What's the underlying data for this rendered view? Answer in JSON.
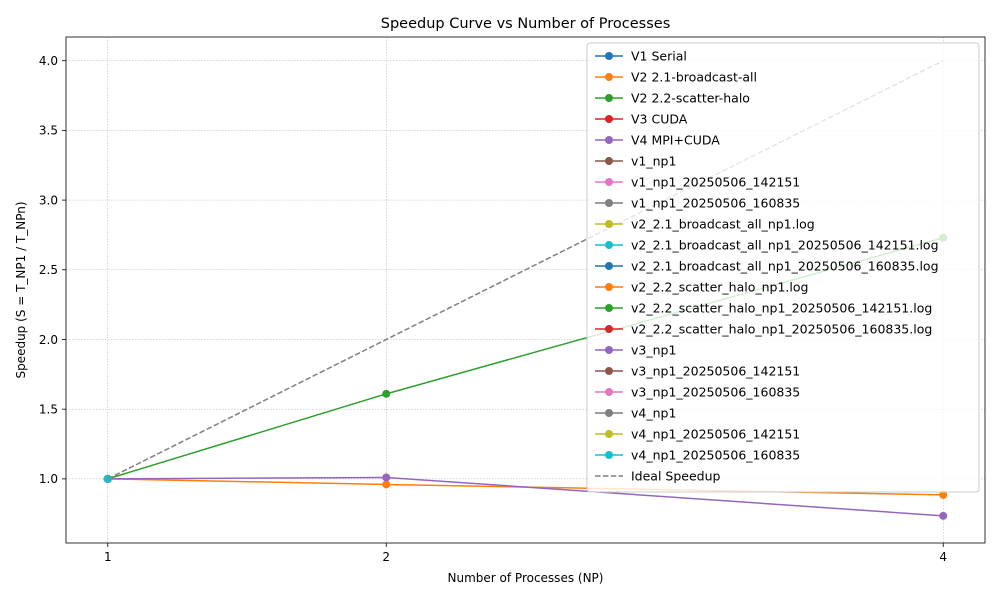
{
  "chart_data": {
    "type": "line",
    "title": "Speedup Curve vs Number of Processes",
    "xlabel": "Number of Processes (NP)",
    "ylabel": "Speedup (S = T_NP1 / T_NPn)",
    "xticks": [
      1,
      2,
      4
    ],
    "yticks": [
      "1.0",
      "1.5",
      "2.0",
      "2.5",
      "3.0",
      "3.5",
      "4.0"
    ],
    "xlim": [
      0.85,
      4.15
    ],
    "ylim": [
      0.54,
      4.17
    ],
    "grid": true,
    "legend_position": "top-right",
    "series": [
      {
        "name": "V1 Serial",
        "color": "#1f77b4",
        "style": "solid",
        "x": [
          1
        ],
        "y": [
          1.0
        ]
      },
      {
        "name": "V2 2.1-broadcast-all",
        "color": "#ff7f0e",
        "style": "solid",
        "x": [
          1,
          2,
          4
        ],
        "y": [
          1.0,
          0.96,
          0.885
        ]
      },
      {
        "name": "V2 2.2-scatter-halo",
        "color": "#2ca02c",
        "style": "solid",
        "x": [
          1,
          2,
          4
        ],
        "y": [
          1.0,
          1.61,
          2.73
        ]
      },
      {
        "name": "V3 CUDA",
        "color": "#d62728",
        "style": "solid",
        "x": [
          1
        ],
        "y": [
          1.0
        ]
      },
      {
        "name": "V4 MPI+CUDA",
        "color": "#9467bd",
        "style": "solid",
        "x": [
          1,
          2,
          4
        ],
        "y": [
          1.0,
          1.01,
          0.735
        ]
      },
      {
        "name": "v1_np1",
        "color": "#8c564b",
        "style": "solid",
        "x": [
          1
        ],
        "y": [
          1.0
        ]
      },
      {
        "name": "v1_np1_20250506_142151",
        "color": "#e377c2",
        "style": "solid",
        "x": [
          1
        ],
        "y": [
          1.0
        ]
      },
      {
        "name": "v1_np1_20250506_160835",
        "color": "#7f7f7f",
        "style": "solid",
        "x": [
          1
        ],
        "y": [
          1.0
        ]
      },
      {
        "name": "v2_2.1_broadcast_all_np1.log",
        "color": "#bcbd22",
        "style": "solid",
        "x": [
          1
        ],
        "y": [
          1.0
        ]
      },
      {
        "name": "v2_2.1_broadcast_all_np1_20250506_142151.log",
        "color": "#17becf",
        "style": "solid",
        "x": [
          1
        ],
        "y": [
          1.0
        ]
      },
      {
        "name": "v2_2.1_broadcast_all_np1_20250506_160835.log",
        "color": "#1f77b4",
        "style": "solid",
        "x": [
          1
        ],
        "y": [
          1.0
        ]
      },
      {
        "name": "v2_2.2_scatter_halo_np1.log",
        "color": "#ff7f0e",
        "style": "solid",
        "x": [
          1
        ],
        "y": [
          1.0
        ]
      },
      {
        "name": "v2_2.2_scatter_halo_np1_20250506_142151.log",
        "color": "#2ca02c",
        "style": "solid",
        "x": [
          1
        ],
        "y": [
          1.0
        ]
      },
      {
        "name": "v2_2.2_scatter_halo_np1_20250506_160835.log",
        "color": "#d62728",
        "style": "solid",
        "x": [
          1
        ],
        "y": [
          1.0
        ]
      },
      {
        "name": "v3_np1",
        "color": "#9467bd",
        "style": "solid",
        "x": [
          1
        ],
        "y": [
          1.0
        ]
      },
      {
        "name": "v3_np1_20250506_142151",
        "color": "#8c564b",
        "style": "solid",
        "x": [
          1
        ],
        "y": [
          1.0
        ]
      },
      {
        "name": "v3_np1_20250506_160835",
        "color": "#e377c2",
        "style": "solid",
        "x": [
          1
        ],
        "y": [
          1.0
        ]
      },
      {
        "name": "v4_np1",
        "color": "#7f7f7f",
        "style": "solid",
        "x": [
          1
        ],
        "y": [
          1.0
        ]
      },
      {
        "name": "v4_np1_20250506_142151",
        "color": "#bcbd22",
        "style": "solid",
        "x": [
          1
        ],
        "y": [
          1.0
        ]
      },
      {
        "name": "v4_np1_20250506_160835",
        "color": "#17becf",
        "style": "solid",
        "x": [
          1
        ],
        "y": [
          1.0
        ]
      },
      {
        "name": "Ideal Speedup",
        "color": "#7f7f7f",
        "style": "dashed",
        "x": [
          1,
          2,
          4
        ],
        "y": [
          1,
          2,
          4
        ]
      }
    ]
  }
}
